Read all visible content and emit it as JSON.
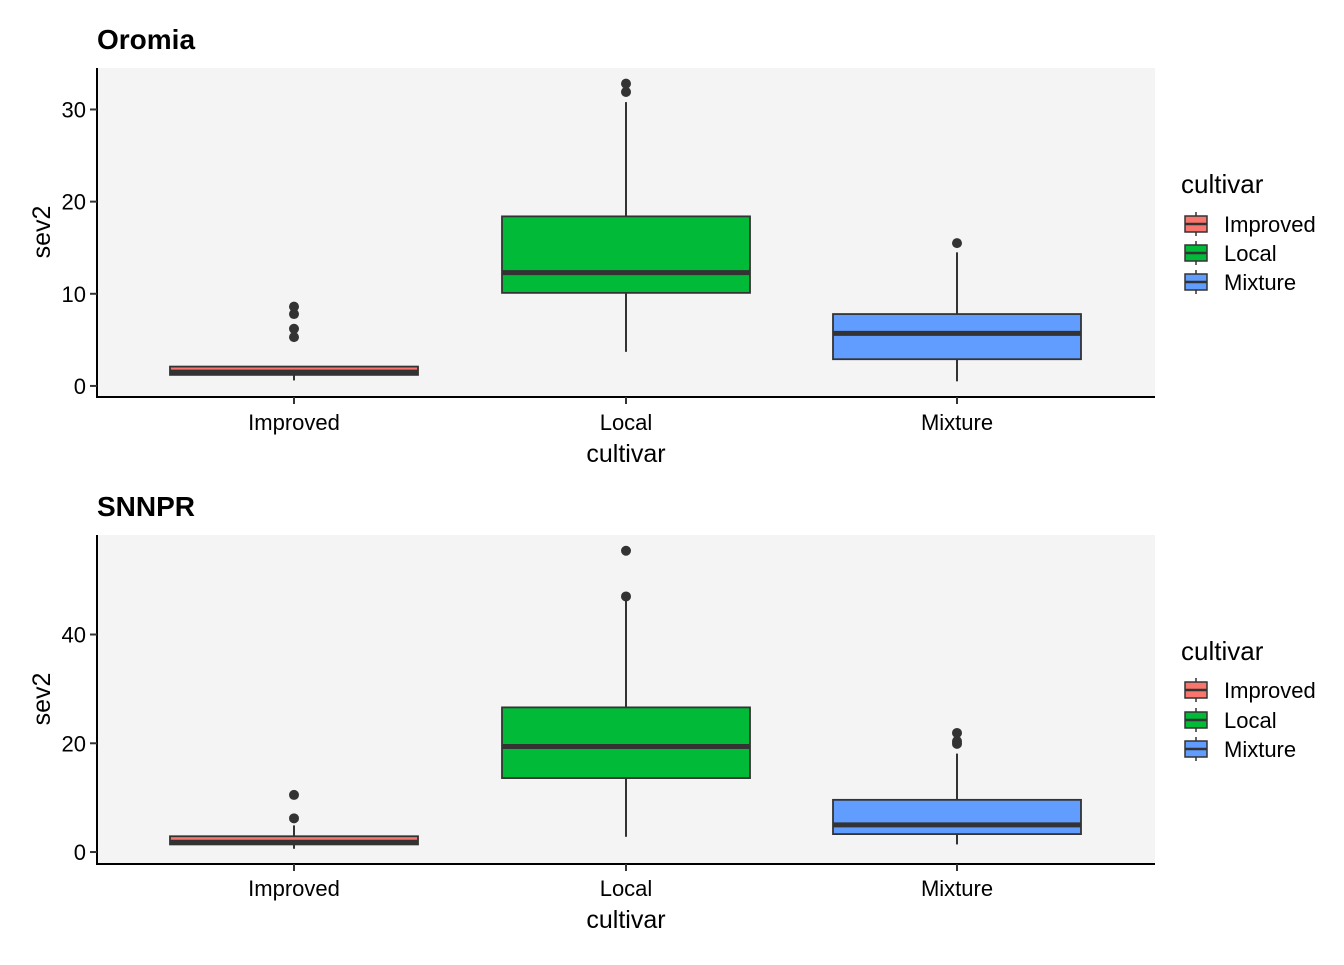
{
  "chart_data": [
    {
      "type": "boxplot",
      "title": "Oromia",
      "xlabel": "cultivar",
      "ylabel": "sev2",
      "categories": [
        "Improved",
        "Local",
        "Mixture"
      ],
      "ylim": [
        -1.2,
        34.5
      ],
      "yticks": [
        0,
        10,
        20,
        30
      ],
      "grid": false,
      "background": "#f4f4f4",
      "legend": {
        "title": "cultivar",
        "position": "right",
        "entries": [
          "Improved",
          "Local",
          "Mixture"
        ]
      },
      "boxes": [
        {
          "category": "Improved",
          "fill": "#F8766D",
          "whisker_low": 0.6,
          "q1": 1.2,
          "median": 1.5,
          "q3": 2.1,
          "whisker_high": 2.1,
          "outliers": [
            5.3,
            6.2,
            7.8,
            8.6
          ]
        },
        {
          "category": "Local",
          "fill": "#00BA38",
          "whisker_low": 3.7,
          "q1": 10.1,
          "median": 12.3,
          "q3": 18.4,
          "whisker_high": 30.8,
          "outliers": [
            31.9,
            32.8
          ]
        },
        {
          "category": "Mixture",
          "fill": "#619CFF",
          "whisker_low": 0.5,
          "q1": 2.9,
          "median": 5.7,
          "q3": 7.8,
          "whisker_high": 14.5,
          "outliers": [
            15.5
          ]
        }
      ]
    },
    {
      "type": "boxplot",
      "title": "SNNPR",
      "xlabel": "cultivar",
      "ylabel": "sev2",
      "categories": [
        "Improved",
        "Local",
        "Mixture"
      ],
      "ylim": [
        -2.2,
        58.3
      ],
      "yticks": [
        0,
        20,
        40
      ],
      "grid": false,
      "background": "#f4f4f4",
      "legend": {
        "title": "cultivar",
        "position": "right",
        "entries": [
          "Improved",
          "Local",
          "Mixture"
        ]
      },
      "boxes": [
        {
          "category": "Improved",
          "fill": "#F8766D",
          "whisker_low": 0.6,
          "q1": 1.4,
          "median": 1.8,
          "q3": 2.9,
          "whisker_high": 4.9,
          "outliers": [
            6.2,
            10.5
          ]
        },
        {
          "category": "Local",
          "fill": "#00BA38",
          "whisker_low": 2.8,
          "q1": 13.6,
          "median": 19.4,
          "q3": 26.6,
          "whisker_high": 46.5,
          "outliers": [
            47.0,
            55.4
          ]
        },
        {
          "category": "Mixture",
          "fill": "#619CFF",
          "whisker_low": 1.4,
          "q1": 3.3,
          "median": 5.0,
          "q3": 9.6,
          "whisker_high": 18.1,
          "outliers": [
            19.9,
            20.4,
            21.9
          ]
        }
      ]
    }
  ]
}
